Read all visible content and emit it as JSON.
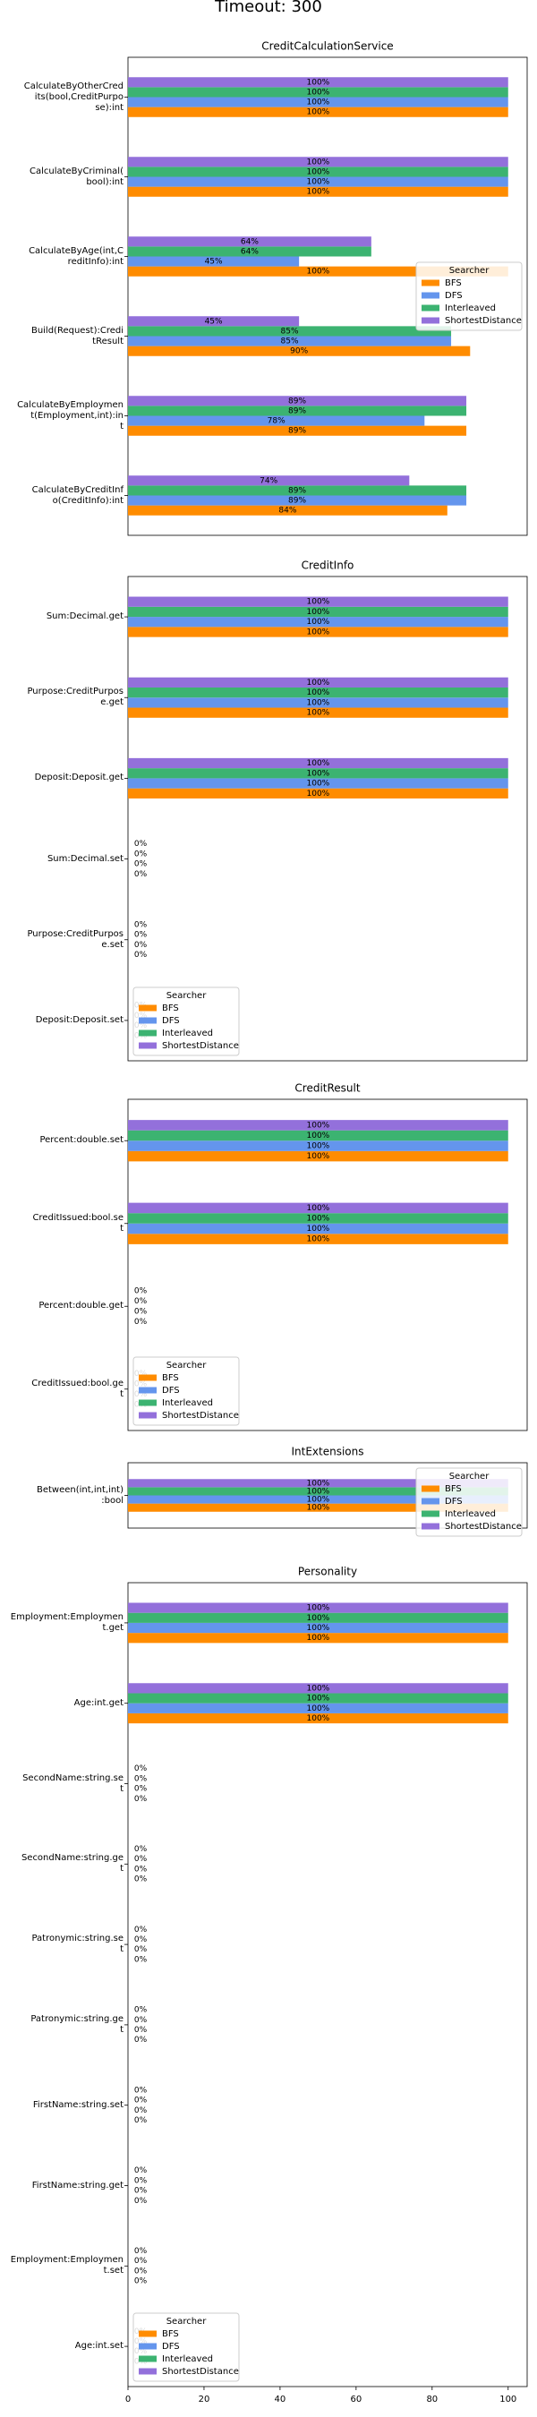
{
  "title": "Timeout: 300",
  "chart_data": [
    {
      "type": "barh",
      "title": "CreditCalculationService",
      "categories": [
        "CalculateByOtherCred\nits(bool,CreditPurpo\nse):int",
        "CalculateByCriminal(\nbool):int",
        "CalculateByAge(int,C\nreditInfo):int",
        "Build(Request):Credi\ntResult",
        "CalculateByEmploymen\nt(Employment,int):in\nt",
        "CalculateByCreditInf\no(CreditInfo):int"
      ],
      "series": [
        {
          "name": "BFS",
          "color": "#ff8c00",
          "values": [
            100,
            100,
            100,
            90,
            89,
            84
          ],
          "value_labels": [
            "100%",
            "100%",
            "100%",
            "90%",
            "89%",
            "84%"
          ]
        },
        {
          "name": "DFS",
          "color": "#6495ed",
          "values": [
            100,
            100,
            45,
            85,
            78,
            89
          ],
          "value_labels": [
            "100%",
            "100%",
            "45%",
            "85%",
            "78%",
            "89%"
          ]
        },
        {
          "name": "Interleaved",
          "color": "#3cb371",
          "values": [
            100,
            100,
            64,
            85,
            89,
            89
          ],
          "value_labels": [
            "100%",
            "100%",
            "64%",
            "85%",
            "89%",
            "89%"
          ]
        },
        {
          "name": "ShortestDistance",
          "color": "#9370db",
          "values": [
            100,
            100,
            64,
            45,
            89,
            74
          ],
          "value_labels": [
            "100%",
            "100%",
            "64%",
            "45%",
            "89%",
            "74%"
          ]
        }
      ],
      "xlim": [
        0,
        105
      ],
      "legend": "center right",
      "legend_title": "Searcher"
    },
    {
      "type": "barh",
      "title": "CreditInfo",
      "categories": [
        "Sum:Decimal.get",
        "Purpose:CreditPurpos\ne.get",
        "Deposit:Deposit.get",
        "Sum:Decimal.set",
        "Purpose:CreditPurpos\ne.set",
        "Deposit:Deposit.set"
      ],
      "series": [
        {
          "name": "BFS",
          "color": "#ff8c00",
          "values": [
            100,
            100,
            100,
            0,
            0,
            0
          ],
          "value_labels": [
            "100%",
            "100%",
            "100%",
            "0%",
            "0%",
            "0%"
          ]
        },
        {
          "name": "DFS",
          "color": "#6495ed",
          "values": [
            100,
            100,
            100,
            0,
            0,
            0
          ],
          "value_labels": [
            "100%",
            "100%",
            "100%",
            "0%",
            "0%",
            "0%"
          ]
        },
        {
          "name": "Interleaved",
          "color": "#3cb371",
          "values": [
            100,
            100,
            100,
            0,
            0,
            0
          ],
          "value_labels": [
            "100%",
            "100%",
            "100%",
            "0%",
            "0%",
            "0%"
          ]
        },
        {
          "name": "ShortestDistance",
          "color": "#9370db",
          "values": [
            100,
            100,
            100,
            0,
            0,
            0
          ],
          "value_labels": [
            "100%",
            "100%",
            "100%",
            "0%",
            "0%",
            "0%"
          ]
        }
      ],
      "xlim": [
        0,
        105
      ],
      "legend": "lower left",
      "legend_title": "Searcher"
    },
    {
      "type": "barh",
      "title": "CreditResult",
      "categories": [
        "Percent:double.set",
        "CreditIssued:bool.se\nt",
        "Percent:double.get",
        "CreditIssued:bool.ge\nt"
      ],
      "series": [
        {
          "name": "BFS",
          "color": "#ff8c00",
          "values": [
            100,
            100,
            0,
            0
          ],
          "value_labels": [
            "100%",
            "100%",
            "0%",
            "0%"
          ]
        },
        {
          "name": "DFS",
          "color": "#6495ed",
          "values": [
            100,
            100,
            0,
            0
          ],
          "value_labels": [
            "100%",
            "100%",
            "0%",
            "0%"
          ]
        },
        {
          "name": "Interleaved",
          "color": "#3cb371",
          "values": [
            100,
            100,
            0,
            0
          ],
          "value_labels": [
            "100%",
            "100%",
            "0%",
            "0%"
          ]
        },
        {
          "name": "ShortestDistance",
          "color": "#9370db",
          "values": [
            100,
            100,
            0,
            0
          ],
          "value_labels": [
            "100%",
            "100%",
            "0%",
            "0%"
          ]
        }
      ],
      "xlim": [
        0,
        105
      ],
      "legend": "lower left",
      "legend_title": "Searcher"
    },
    {
      "type": "barh",
      "title": "IntExtensions",
      "categories": [
        "Between(int,int,int)\n:bool"
      ],
      "series": [
        {
          "name": "BFS",
          "color": "#ff8c00",
          "values": [
            100
          ],
          "value_labels": [
            "100%"
          ]
        },
        {
          "name": "DFS",
          "color": "#6495ed",
          "values": [
            100
          ],
          "value_labels": [
            "100%"
          ]
        },
        {
          "name": "Interleaved",
          "color": "#3cb371",
          "values": [
            100
          ],
          "value_labels": [
            "100%"
          ]
        },
        {
          "name": "ShortestDistance",
          "color": "#9370db",
          "values": [
            100
          ],
          "value_labels": [
            "100%"
          ]
        }
      ],
      "xlim": [
        0,
        105
      ],
      "legend": "upper right",
      "legend_title": "Searcher"
    },
    {
      "type": "barh",
      "title": "Personality",
      "categories": [
        "Employment:Employmen\nt.get",
        "Age:int.get",
        "SecondName:string.se\nt",
        "SecondName:string.ge\nt",
        "Patronymic:string.se\nt",
        "Patronymic:string.ge\nt",
        "FirstName:string.set",
        "FirstName:string.get",
        "Employment:Employmen\nt.set",
        "Age:int.set"
      ],
      "series": [
        {
          "name": "BFS",
          "color": "#ff8c00",
          "values": [
            100,
            100,
            0,
            0,
            0,
            0,
            0,
            0,
            0,
            0
          ],
          "value_labels": [
            "100%",
            "100%",
            "0%",
            "0%",
            "0%",
            "0%",
            "0%",
            "0%",
            "0%",
            "0%"
          ]
        },
        {
          "name": "DFS",
          "color": "#6495ed",
          "values": [
            100,
            100,
            0,
            0,
            0,
            0,
            0,
            0,
            0,
            0
          ],
          "value_labels": [
            "100%",
            "100%",
            "0%",
            "0%",
            "0%",
            "0%",
            "0%",
            "0%",
            "0%",
            "0%"
          ]
        },
        {
          "name": "Interleaved",
          "color": "#3cb371",
          "values": [
            100,
            100,
            0,
            0,
            0,
            0,
            0,
            0,
            0,
            0
          ],
          "value_labels": [
            "100%",
            "100%",
            "0%",
            "0%",
            "0%",
            "0%",
            "0%",
            "0%",
            "0%",
            "0%"
          ]
        },
        {
          "name": "ShortestDistance",
          "color": "#9370db",
          "values": [
            100,
            100,
            0,
            0,
            0,
            0,
            0,
            0,
            0,
            0
          ],
          "value_labels": [
            "100%",
            "100%",
            "0%",
            "0%",
            "0%",
            "0%",
            "0%",
            "0%",
            "0%",
            "0%"
          ]
        }
      ],
      "xlim": [
        0,
        105
      ],
      "xticks": [
        0,
        20,
        40,
        60,
        80,
        100
      ],
      "legend": "lower left",
      "legend_title": "Searcher"
    }
  ]
}
